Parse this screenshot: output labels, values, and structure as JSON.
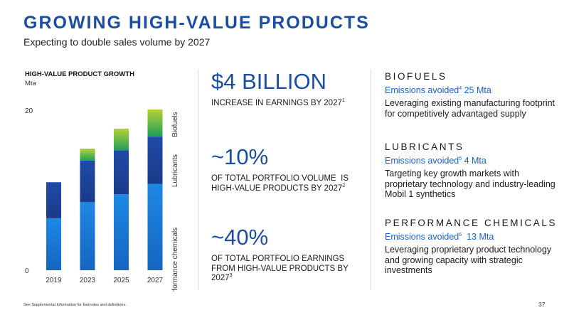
{
  "header": {
    "title": "GROWING HIGH-VALUE PRODUCTS",
    "subtitle": "Expecting to double sales volume by 2027"
  },
  "chart_data": {
    "type": "bar",
    "stacked": true,
    "title": "HIGH-VALUE PRODUCT GROWTH",
    "unit": "Mta",
    "categories": [
      "2019",
      "2023",
      "2025",
      "2027"
    ],
    "y_ticks": [
      "20",
      "0"
    ],
    "ylim": [
      0,
      20
    ],
    "grid": false,
    "legend_placement": "right, rotated labels",
    "series": [
      {
        "name": "Performance chemicals",
        "values": [
          6.5,
          8.5,
          9.5,
          10.8
        ],
        "color_bottom": "#1565c0",
        "color_top": "#1e88e5"
      },
      {
        "name": "Lubricants",
        "values": [
          4.5,
          5.2,
          5.5,
          5.9
        ],
        "color_bottom": "#1a3a8a",
        "color_top": "#1f4aa8"
      },
      {
        "name": "Biofuels",
        "values": [
          0,
          1.5,
          2.7,
          3.4
        ],
        "color_bottom": "#1f9e5a",
        "color_top": "#b5d334"
      }
    ]
  },
  "kpis": [
    {
      "value": "$4 BILLION",
      "desc": "INCREASE IN EARNINGS BY 2027",
      "sup": "1"
    },
    {
      "value": "~10%",
      "desc": "OF TOTAL PORTFOLIO VOLUME  IS HIGH-VALUE PRODUCTS BY 2027",
      "sup": "2"
    },
    {
      "value": "~40%",
      "desc": "OF TOTAL PORTFOLIO EARNINGS FROM HIGH-VALUE PRODUCTS BY 2027",
      "sup": "3"
    }
  ],
  "segments": [
    {
      "name": "BIOFUELS",
      "emis_label": "Emissions avoided",
      "emis_sup": "4",
      "emis_value": " 25 Mta",
      "desc": "Leveraging existing manufacturing footprint for competitively advantaged supply"
    },
    {
      "name": "LUBRICANTS",
      "emis_label": "Emissions avoided",
      "emis_sup": "5",
      "emis_value": " 4 Mta",
      "desc": "Targeting key growth markets with proprietary technology and industry-leading Mobil 1 synthetics"
    },
    {
      "name": "PERFORMANCE CHEMICALS",
      "emis_label": "Emissions avoided",
      "emis_sup": "6",
      "emis_value": "  13 Mta",
      "desc": "Leveraging proprietary product technology and growing capacity with strategic investments"
    }
  ],
  "footer": {
    "footnote": "See Supplemental Information for footnotes and definitions.",
    "page_number": "37"
  },
  "colors": {
    "accent": "#1b4ea3",
    "emissions": "#1b63c6",
    "divider": "#d9d9d9"
  }
}
